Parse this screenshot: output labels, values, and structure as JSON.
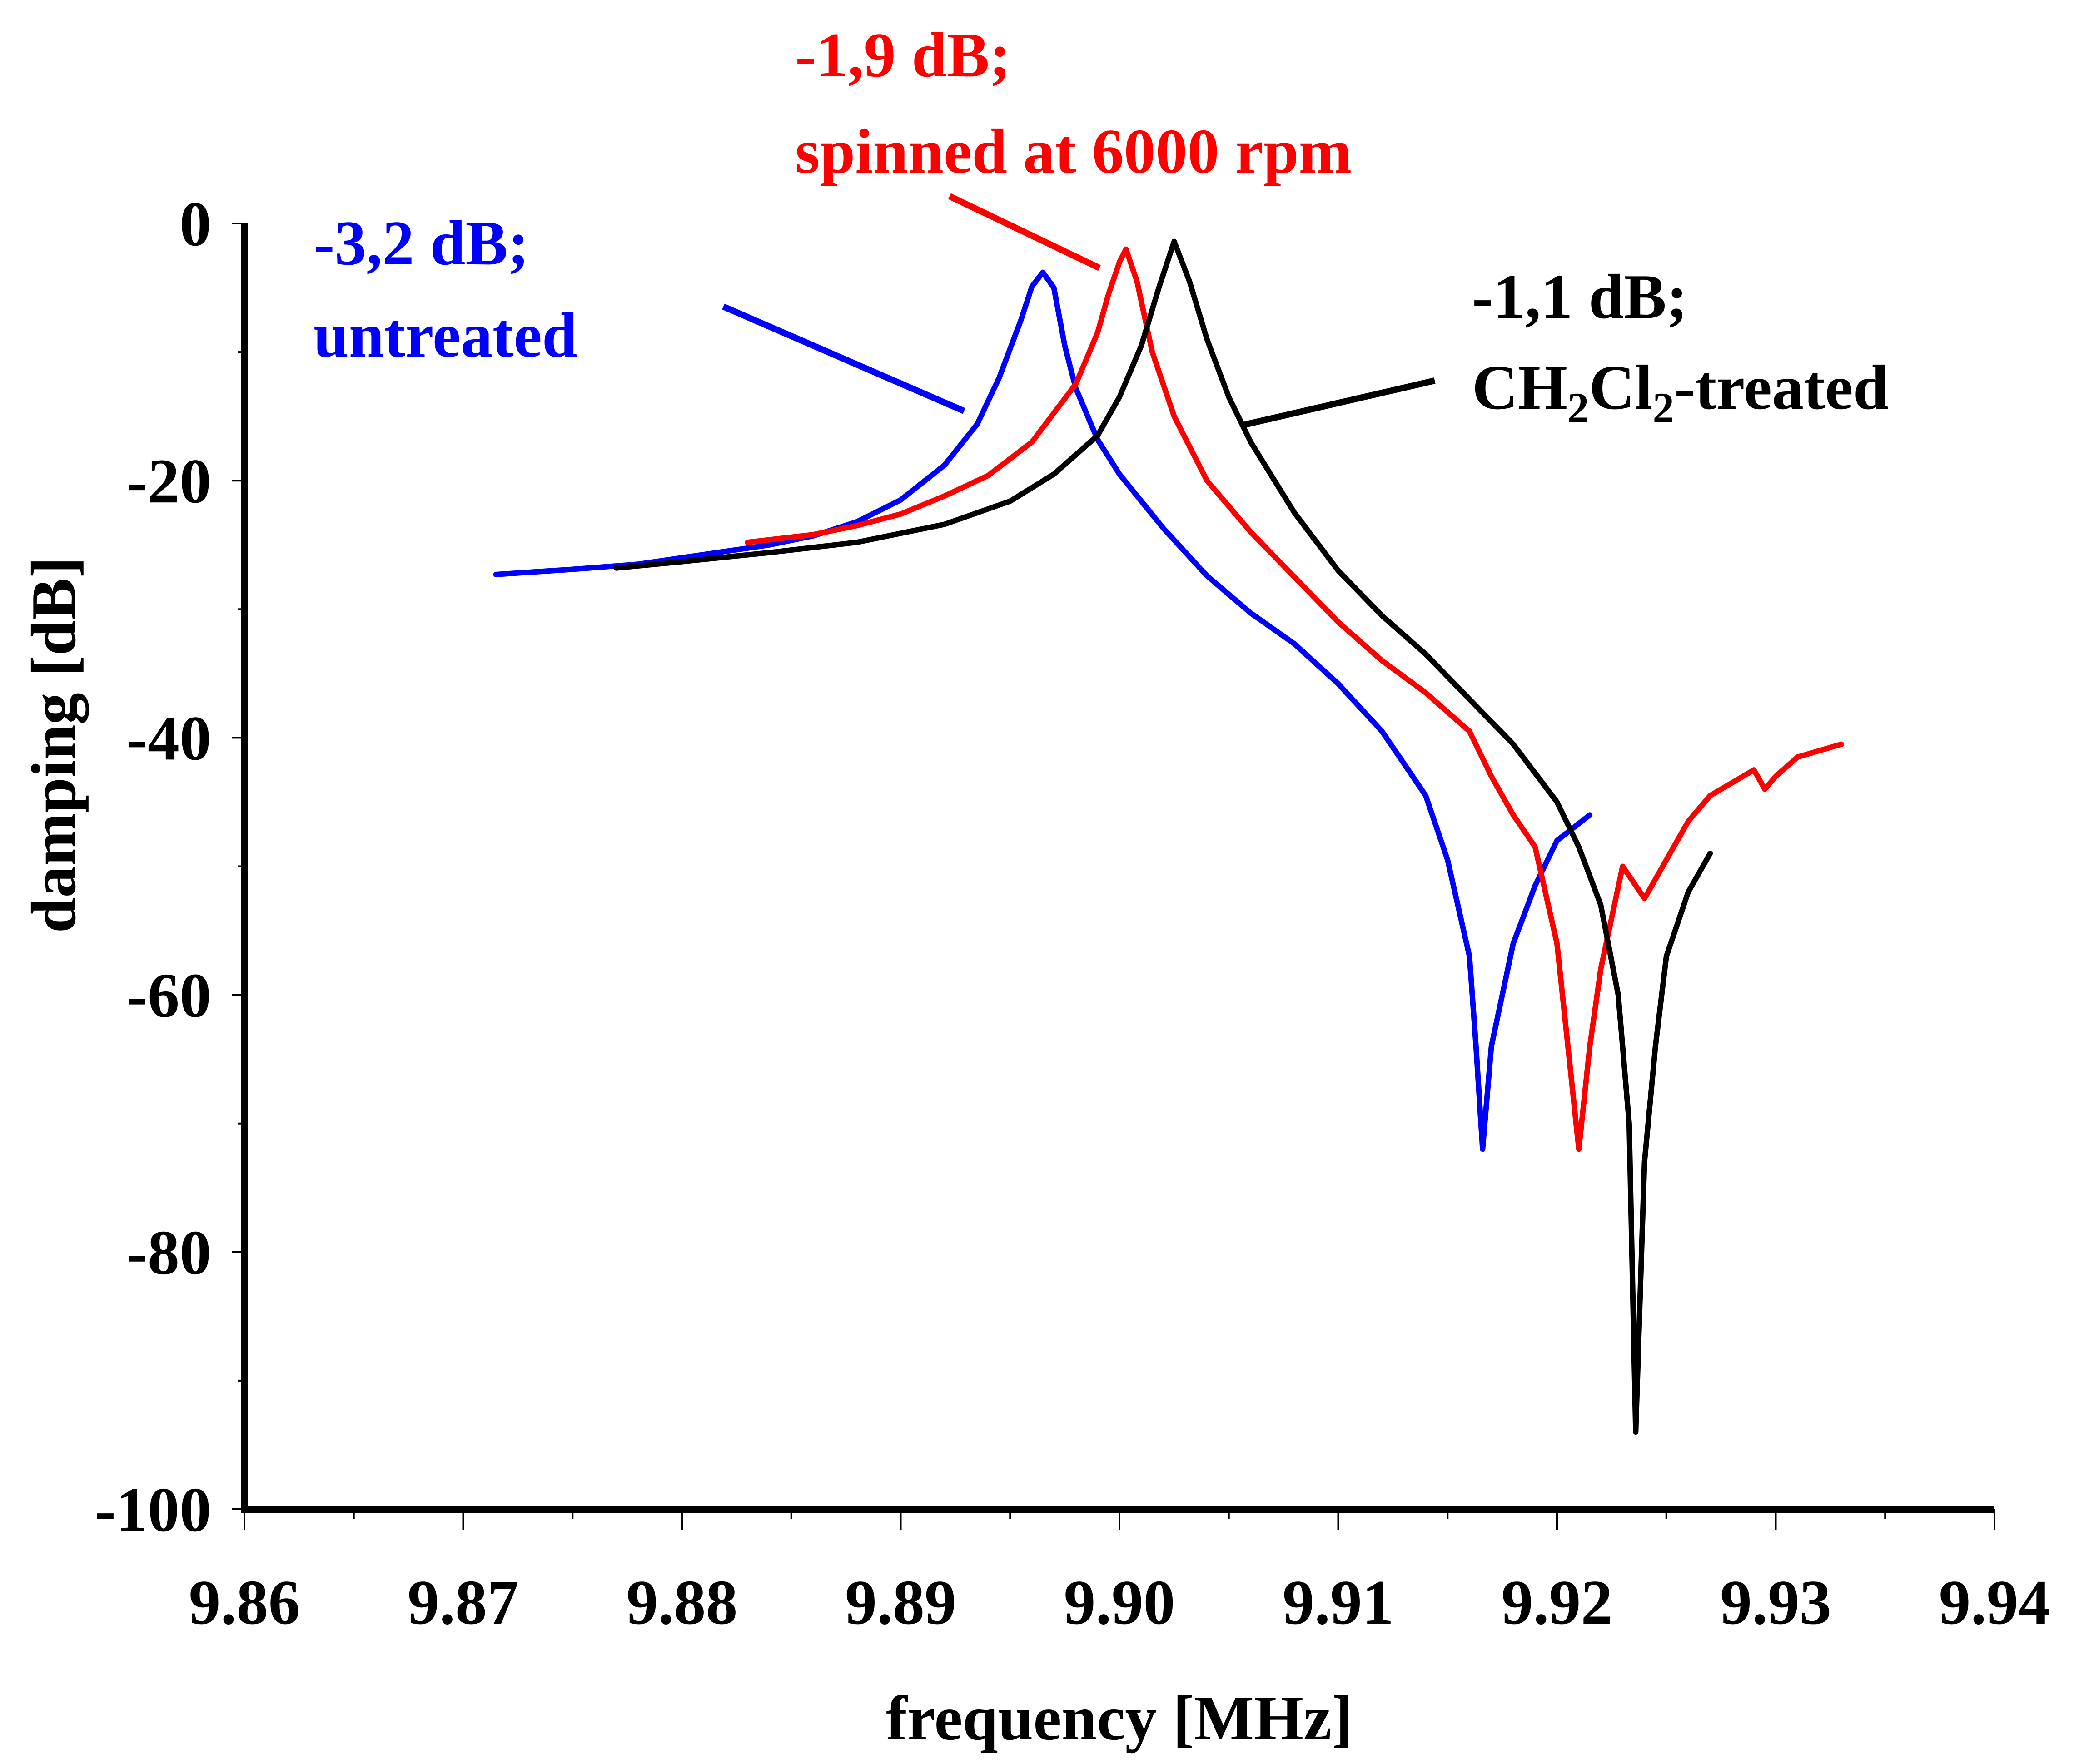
{
  "chart_data": {
    "type": "line",
    "title": "",
    "xlabel": "frequency [MHz]",
    "ylabel": "damping [dB]",
    "xlim": [
      9.86,
      9.94
    ],
    "ylim": [
      -100,
      0
    ],
    "x_ticks": [
      9.86,
      9.87,
      9.88,
      9.89,
      9.9,
      9.91,
      9.92,
      9.93,
      9.94
    ],
    "x_tick_labels": [
      "9.86",
      "9.87",
      "9.88",
      "9.89",
      "9.90",
      "9.91",
      "9.92",
      "9.93",
      "9.94"
    ],
    "y_ticks": [
      0,
      -20,
      -40,
      -60,
      -80,
      -100
    ],
    "y_tick_labels": [
      "0",
      "-20",
      "-40",
      "-60",
      "-80",
      "-100"
    ],
    "grid": false,
    "series": [
      {
        "name": "untreated",
        "color": "#0000ff",
        "x": [
          9.8715,
          9.875,
          9.878,
          9.88,
          9.882,
          9.884,
          9.886,
          9.888,
          9.89,
          9.892,
          9.8935,
          9.8945,
          9.8955,
          9.896,
          9.8965,
          9.897,
          9.8975,
          9.898,
          9.899,
          9.9,
          9.902,
          9.904,
          9.906,
          9.908,
          9.91,
          9.912,
          9.914,
          9.915,
          9.916,
          9.9163,
          9.9166,
          9.917,
          9.918,
          9.919,
          9.92,
          9.9215
        ],
        "y": [
          -27.3,
          -26.9,
          -26.5,
          -26.0,
          -25.5,
          -25.0,
          -24.3,
          -23.2,
          -21.5,
          -18.8,
          -15.6,
          -12.0,
          -7.5,
          -4.9,
          -3.8,
          -5.0,
          -9.5,
          -12.8,
          -16.8,
          -19.5,
          -23.7,
          -27.4,
          -30.3,
          -32.7,
          -35.8,
          -39.5,
          -44.5,
          -49.5,
          -57.0,
          -64.0,
          -72.0,
          -64.0,
          -56.0,
          -51.5,
          -48.0,
          -46.0
        ]
      },
      {
        "name": "spinned at 6000 rpm",
        "color": "#ff0000",
        "x": [
          9.883,
          9.886,
          9.888,
          9.89,
          9.892,
          9.894,
          9.896,
          9.898,
          9.899,
          9.8995,
          9.9,
          9.9003,
          9.9008,
          9.9015,
          9.9025,
          9.904,
          9.906,
          9.908,
          9.91,
          9.912,
          9.914,
          9.916,
          9.917,
          9.918,
          9.919,
          9.92,
          9.9205,
          9.921,
          9.9215,
          9.922,
          9.923,
          9.924,
          9.925,
          9.926,
          9.927,
          9.928,
          9.929,
          9.9295,
          9.93,
          9.931,
          9.932,
          9.933
        ],
        "y": [
          -24.8,
          -24.2,
          -23.5,
          -22.6,
          -21.2,
          -19.6,
          -17.0,
          -12.5,
          -8.5,
          -5.5,
          -3.0,
          -2.0,
          -4.5,
          -10.0,
          -15.0,
          -20.0,
          -24.0,
          -27.5,
          -31.0,
          -34.0,
          -36.5,
          -39.5,
          -43.0,
          -46.0,
          -48.5,
          -56.0,
          -64.0,
          -72.0,
          -64.0,
          -58.0,
          -50.0,
          -52.5,
          -49.5,
          -46.5,
          -44.5,
          -43.5,
          -42.5,
          -44.0,
          -43.0,
          -41.5,
          -41.0,
          -40.5
        ]
      },
      {
        "name": "CH2Cl2-treated",
        "color": "#000000",
        "x": [
          9.877,
          9.88,
          9.884,
          9.888,
          9.892,
          9.895,
          9.897,
          9.899,
          9.9,
          9.901,
          9.9018,
          9.9025,
          9.9032,
          9.904,
          9.905,
          9.906,
          9.908,
          9.91,
          9.912,
          9.914,
          9.916,
          9.918,
          9.92,
          9.921,
          9.922,
          9.9228,
          9.9233,
          9.9236,
          9.924,
          9.9245,
          9.925,
          9.926,
          9.927
        ],
        "y": [
          -26.8,
          -26.3,
          -25.6,
          -24.8,
          -23.4,
          -21.6,
          -19.5,
          -16.5,
          -13.5,
          -9.5,
          -5.0,
          -1.4,
          -4.5,
          -9.0,
          -13.5,
          -17.0,
          -22.5,
          -27.0,
          -30.5,
          -33.5,
          -37.0,
          -40.5,
          -45.0,
          -48.5,
          -53.0,
          -60.0,
          -70.0,
          -94.0,
          -73.0,
          -64.0,
          -57.0,
          -52.0,
          -49.0
        ]
      }
    ],
    "annotations": [
      {
        "lines": [
          "-3,2 dB;",
          "untreated"
        ],
        "color": "#0000ff"
      },
      {
        "lines": [
          "-1,9 dB;",
          "spinned at 6000 rpm"
        ],
        "color": "#ff0000"
      },
      {
        "line1": "-1,1 dB;",
        "formula": [
          "CH",
          "2",
          "Cl",
          "2",
          "-treated"
        ],
        "color": "#000000"
      }
    ]
  }
}
